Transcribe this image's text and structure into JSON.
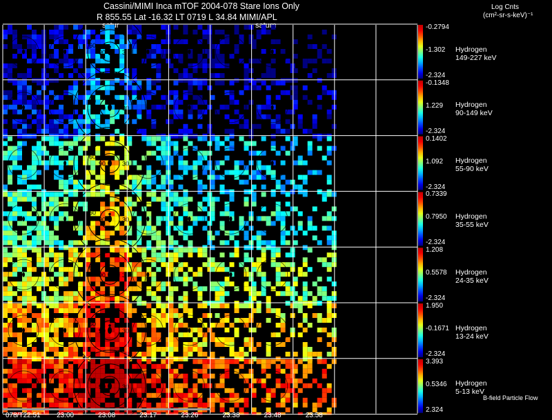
{
  "header": {
    "title": "Cassini/MIMI Inca mTOF  2004-078    Stare    Ions Only",
    "subtitle": "R         855.55 Lat -16.32 LT 0719 L          34.84  MIMI/APL",
    "units_title": "Log Cnts",
    "units_sub": "(cm²-sr-s-keV)⁻¹",
    "saturn_label_1": "satur",
    "saturn_label_2": "saturn"
  },
  "rows": [
    {
      "species": "Hydrogen",
      "energy": "149-227 keV",
      "cb_max": "-0.2794",
      "cb_mid": "-1.302",
      "cb_min": "-2.324",
      "level": 0.05
    },
    {
      "species": "Hydrogen",
      "energy": "90-149 keV",
      "cb_max": "-0.1348",
      "cb_mid": "1.229",
      "cb_min": "-2.324",
      "level": 0.12
    },
    {
      "species": "Hydrogen",
      "energy": "55-90 keV",
      "cb_max": "0.1402",
      "cb_mid": "1.092",
      "cb_min": "-2.324",
      "level": 0.38
    },
    {
      "species": "Hydrogen",
      "energy": "35-55 keV",
      "cb_max": "0.7339",
      "cb_mid": "0.7950",
      "cb_min": "-2.324",
      "level": 0.45
    },
    {
      "species": "Hydrogen",
      "energy": "24-35 keV",
      "cb_max": "1.208",
      "cb_mid": "0.5578",
      "cb_min": "-2.324",
      "level": 0.58
    },
    {
      "species": "Hydrogen",
      "energy": "13-24 keV",
      "cb_max": "1.950",
      "cb_mid": "-0.1671",
      "cb_min": "-2.324",
      "level": 0.7
    },
    {
      "species": "Hydrogen",
      "energy": "5-13 keV",
      "cb_max": "3.393",
      "cb_mid": "0.5346",
      "cb_min": "2.324",
      "level": 0.85
    }
  ],
  "ring_labels": [
    "30",
    "60",
    "90"
  ],
  "time_ticks": [
    "078/T22:51",
    "23:00",
    "23:08",
    "23:17",
    "23:26",
    "23:38",
    "23:48",
    "23:58"
  ],
  "footer": {
    "bflow": "B-field Particle Flow"
  }
}
